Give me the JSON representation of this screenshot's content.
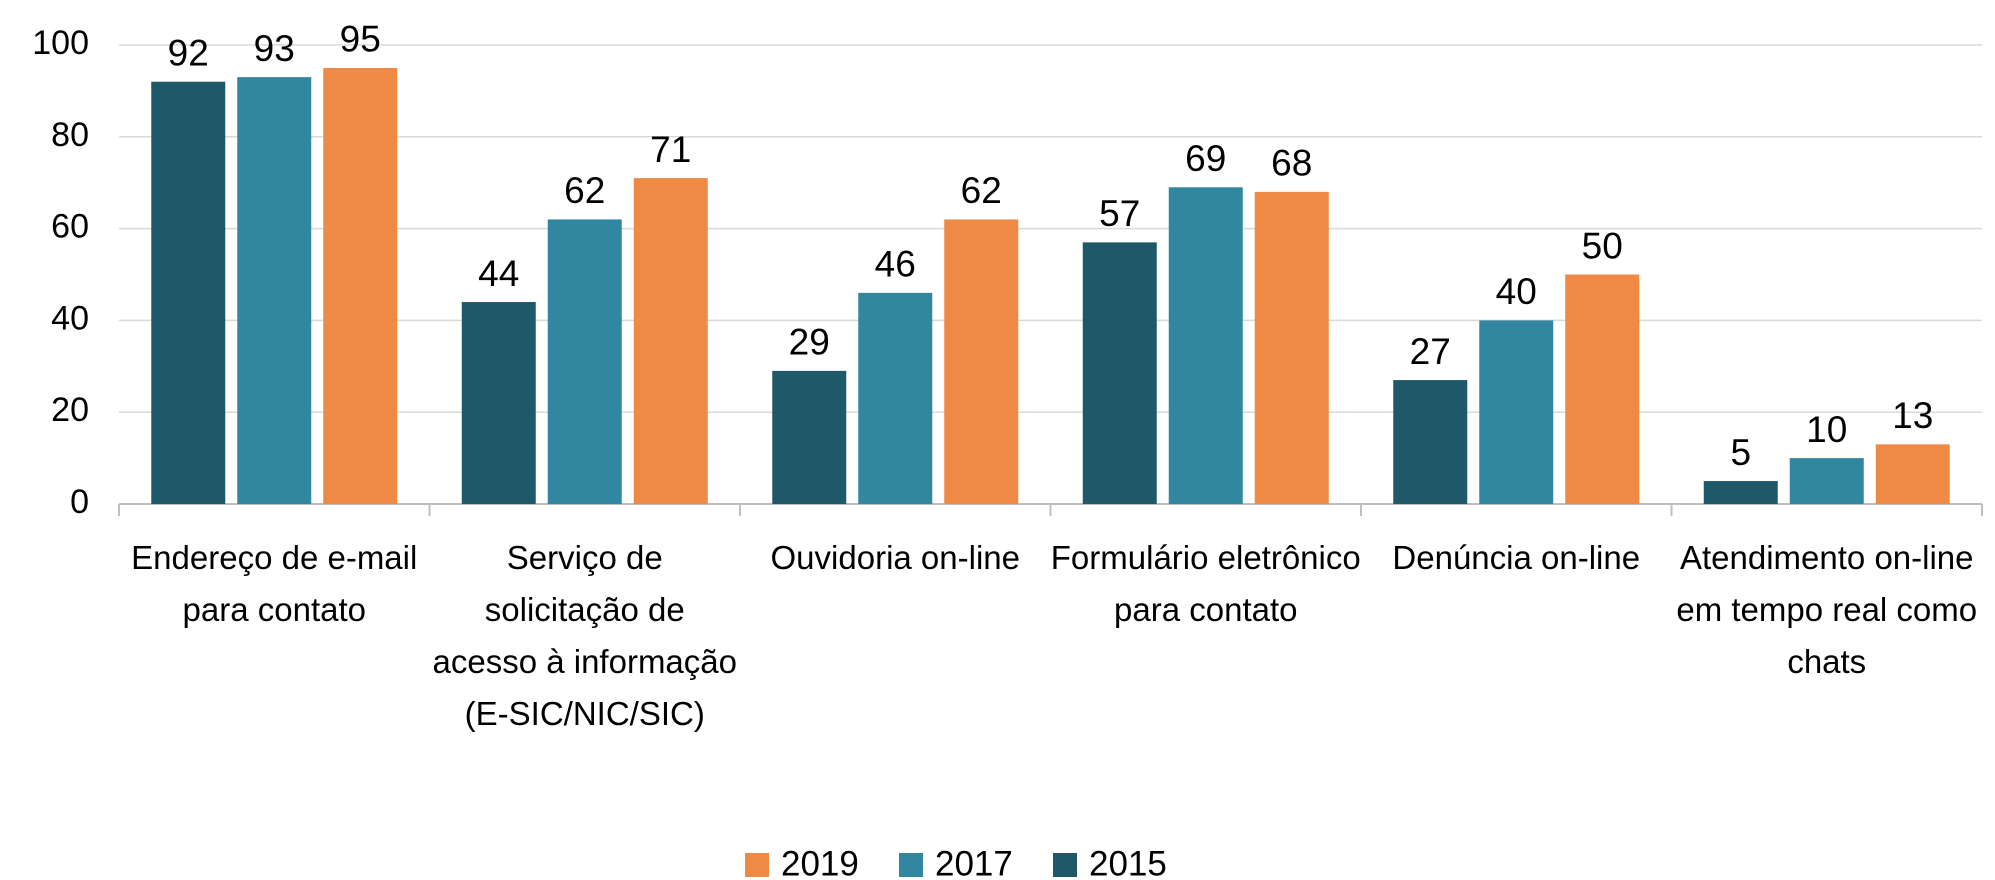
{
  "chart_data": {
    "type": "bar",
    "categories": [
      "Endereço de e-mail para contato",
      "Serviço de solicitação de acesso à informação (E-SIC/NIC/SIC)",
      "Ouvidoria on-line",
      "Formulário eletrônico para contato",
      "Denúncia on-line",
      "Atendimento on-line em tempo real como chats"
    ],
    "series": [
      {
        "name": "2015",
        "color": "#1f5868",
        "values": [
          92,
          44,
          29,
          57,
          27,
          5
        ]
      },
      {
        "name": "2017",
        "color": "#31879f",
        "values": [
          93,
          62,
          46,
          69,
          40,
          10
        ]
      },
      {
        "name": "2019",
        "color": "#ee8a45",
        "values": [
          95,
          71,
          62,
          68,
          50,
          13
        ]
      }
    ],
    "ylim": [
      0,
      100
    ],
    "yticks": [
      0,
      20,
      40,
      60,
      80,
      100
    ],
    "grid": true
  }
}
